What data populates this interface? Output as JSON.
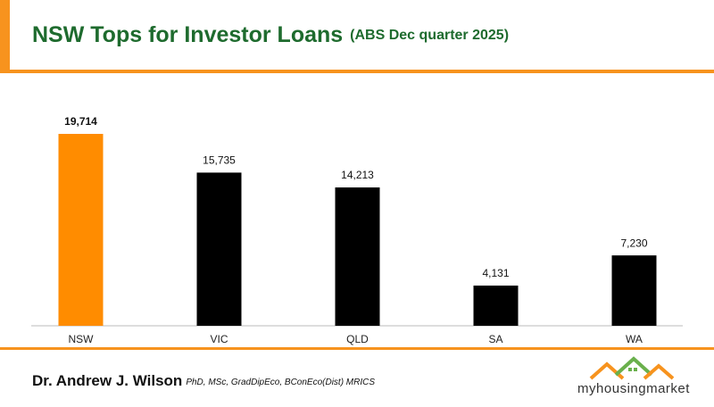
{
  "chart_data": {
    "type": "bar",
    "title": "NSW Tops for Investor Loans",
    "subtitle": "(ABS Dec quarter 2025)",
    "categories": [
      "NSW",
      "VIC",
      "QLD",
      "SA",
      "WA"
    ],
    "values": [
      19714,
      15735,
      14213,
      4131,
      7230
    ],
    "value_labels": [
      "19,714",
      "15,735",
      "14,213",
      "4,131",
      "7,230"
    ],
    "colors": [
      "#ff8c00",
      "#000000",
      "#000000",
      "#000000",
      "#000000"
    ]
  },
  "footer": {
    "author": "Dr. Andrew J. Wilson",
    "credentials": "PhD, MSc, GradDipEco, BConEco(Dist) MRICS",
    "logo": "myhousingmarket"
  }
}
